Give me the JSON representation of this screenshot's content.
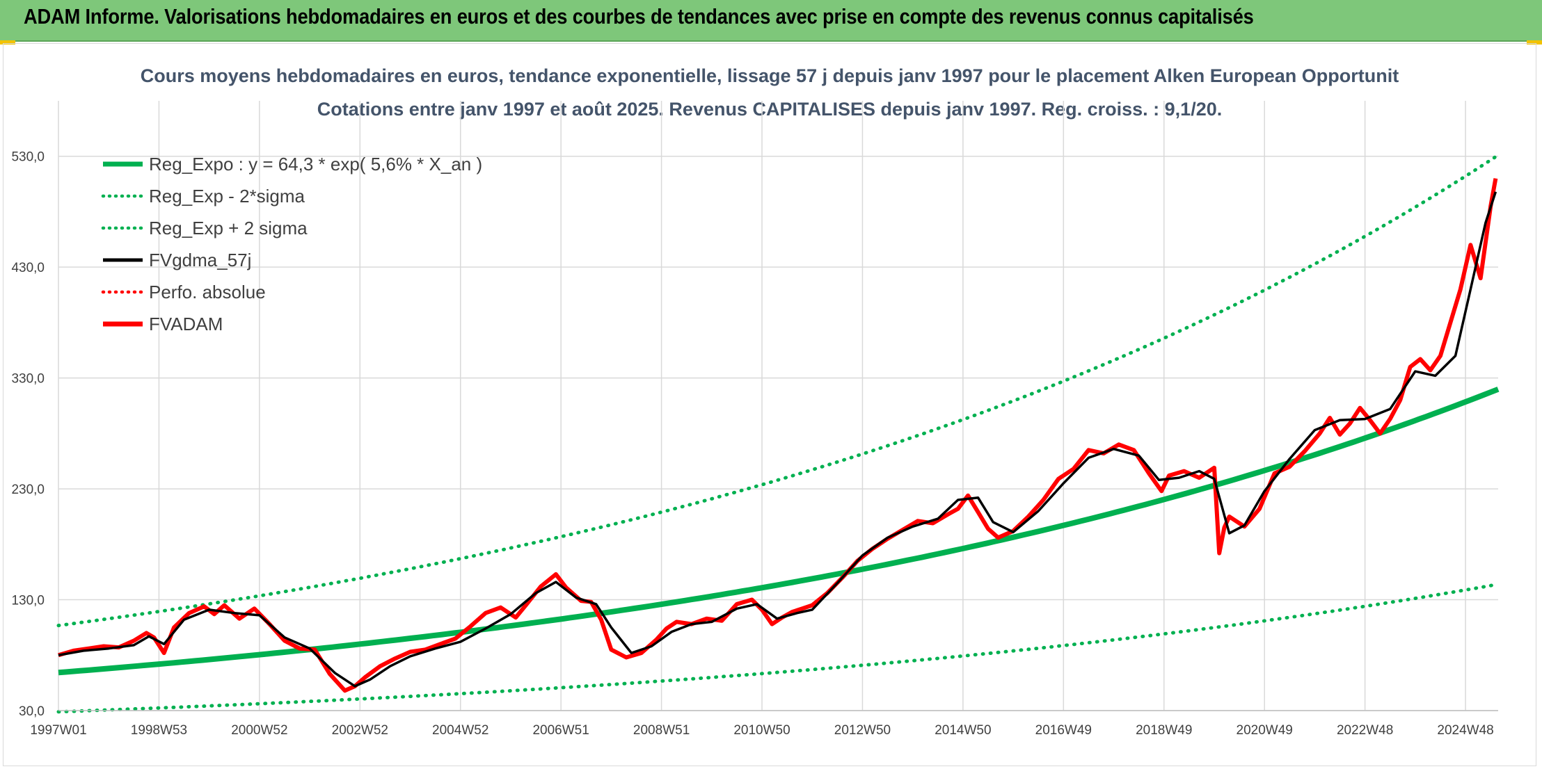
{
  "header": {
    "banner_title": "ADAM Informe. Valorisations hebdomadaires en euros et des courbes de tendances avec prise en compte des revenus connus capitalisés"
  },
  "colors": {
    "banner_bg": "#7ec77a",
    "reg_green": "#00b050",
    "smooth_black": "#000000",
    "price_red": "#ff0000",
    "grid": "#d9d9d9"
  },
  "chart_data": {
    "type": "line",
    "title_line1": "Cours moyens hebdomadaires en euros, tendance exponentielle, lissage 57 j depuis janv 1997 pour le placement Alken European Opportunit",
    "title_line2": "Cotations entre janv 1997 et août 2025. Revenus CAPITALISES depuis janv 1997. Reg. croiss. : 9,1/20.",
    "x_tick_labels": [
      "1997W01",
      "1998W53",
      "2000W52",
      "2002W52",
      "2004W52",
      "2006W51",
      "2008W51",
      "2010W50",
      "2012W50",
      "2014W50",
      "2016W49",
      "2018W49",
      "2020W49",
      "2022W48",
      "2024W48"
    ],
    "x_tick_years": [
      1997.0,
      1999.0,
      2001.0,
      2003.0,
      2005.0,
      2007.0,
      2009.0,
      2011.0,
      2013.0,
      2015.0,
      2017.0,
      2019.0,
      2021.0,
      2023.0,
      2025.0
    ],
    "x_range": [
      1997.0,
      2025.65
    ],
    "ylim": [
      30,
      580
    ],
    "y_ticks": [
      30,
      130,
      230,
      330,
      430,
      530
    ],
    "y_tick_labels": [
      "30,0",
      "130,0",
      "230,0",
      "330,0",
      "430,0",
      "530,0"
    ],
    "grid": true,
    "legend_position": "top-left",
    "legend": [
      {
        "label": "Reg_Expo : y = 64,3 * exp( 5,6% *  X_an )",
        "style": "solid-thick",
        "color": "#00b050"
      },
      {
        "label": "Reg_Exp - 2*sigma",
        "style": "dotted",
        "color": "#00b050"
      },
      {
        "label": "Reg_Exp + 2 sigma",
        "style": "dotted",
        "color": "#00b050"
      },
      {
        "label": "FVgdma_57j",
        "style": "solid",
        "color": "#000000"
      },
      {
        "label": "Perfo. absolue",
        "style": "dotted",
        "color": "#ff0000"
      },
      {
        "label": "FVADAM",
        "style": "solid-thick",
        "color": "#ff0000"
      }
    ],
    "regression": {
      "a": 64.3,
      "rate": 0.056,
      "lower_factor": 0.45,
      "upper_factor": 1.66
    },
    "series": [
      {
        "name": "FVADAM",
        "x": [
          1997.0,
          1997.3,
          1997.6,
          1997.9,
          1998.2,
          1998.5,
          1998.75,
          1998.9,
          1999.1,
          1999.3,
          1999.6,
          1999.9,
          2000.1,
          2000.3,
          2000.6,
          2000.9,
          2001.2,
          2001.5,
          2001.8,
          2002.1,
          2002.4,
          2002.7,
          2002.9,
          2003.1,
          2003.4,
          2003.7,
          2004.0,
          2004.3,
          2004.6,
          2004.9,
          2005.2,
          2005.5,
          2005.8,
          2006.1,
          2006.3,
          2006.6,
          2006.9,
          2007.1,
          2007.4,
          2007.6,
          2007.8,
          2008.0,
          2008.3,
          2008.6,
          2008.9,
          2009.1,
          2009.3,
          2009.6,
          2009.9,
          2010.2,
          2010.5,
          2010.8,
          2011.0,
          2011.2,
          2011.4,
          2011.6,
          2011.8,
          2012.0,
          2012.3,
          2012.6,
          2012.9,
          2013.2,
          2013.5,
          2013.8,
          2014.1,
          2014.4,
          2014.7,
          2014.9,
          2015.1,
          2015.3,
          2015.5,
          2015.7,
          2016.0,
          2016.3,
          2016.6,
          2016.9,
          2017.2,
          2017.5,
          2017.8,
          2018.1,
          2018.4,
          2018.7,
          2018.95,
          2019.1,
          2019.4,
          2019.7,
          2020.0,
          2020.1,
          2020.2,
          2020.3,
          2020.6,
          2020.9,
          2021.2,
          2021.5,
          2021.8,
          2022.1,
          2022.3,
          2022.5,
          2022.7,
          2022.9,
          2023.1,
          2023.3,
          2023.5,
          2023.7,
          2023.9,
          2024.1,
          2024.3,
          2024.5,
          2024.7,
          2024.9,
          2025.1,
          2025.3,
          2025.5,
          2025.6
        ],
        "y": [
          80,
          84,
          86,
          88,
          87,
          93,
          100,
          96,
          82,
          105,
          118,
          124,
          117,
          125,
          113,
          122,
          108,
          93,
          86,
          85,
          63,
          48,
          52,
          60,
          70,
          77,
          83,
          85,
          90,
          95,
          106,
          118,
          123,
          114,
          125,
          142,
          153,
          141,
          129,
          128,
          112,
          85,
          78,
          82,
          94,
          104,
          110,
          108,
          113,
          111,
          126,
          130,
          121,
          108,
          114,
          119,
          122,
          125,
          136,
          150,
          165,
          176,
          185,
          193,
          201,
          199,
          207,
          212,
          224,
          209,
          194,
          186,
          192,
          205,
          220,
          239,
          248,
          265,
          262,
          270,
          265,
          244,
          228,
          242,
          246,
          240,
          249,
          172,
          195,
          205,
          196,
          212,
          244,
          250,
          264,
          280,
          294,
          279,
          289,
          303,
          292,
          280,
          293,
          310,
          340,
          347,
          337,
          350,
          380,
          410,
          450,
          420,
          485,
          510
        ]
      },
      {
        "name": "FVgdma_57j",
        "x": [
          1997.0,
          1997.5,
          1998.0,
          1998.5,
          1998.8,
          1999.1,
          1999.5,
          2000.0,
          2000.5,
          2001.0,
          2001.5,
          2002.0,
          2002.5,
          2002.9,
          2003.2,
          2003.6,
          2004.0,
          2004.5,
          2005.0,
          2005.5,
          2006.0,
          2006.5,
          2006.9,
          2007.3,
          2007.7,
          2008.0,
          2008.4,
          2008.8,
          2009.2,
          2009.6,
          2010.0,
          2010.5,
          2010.9,
          2011.3,
          2011.7,
          2012.0,
          2012.5,
          2013.0,
          2013.5,
          2014.0,
          2014.5,
          2014.9,
          2015.3,
          2015.6,
          2016.0,
          2016.5,
          2017.0,
          2017.5,
          2018.0,
          2018.5,
          2018.9,
          2019.3,
          2019.7,
          2020.0,
          2020.3,
          2020.6,
          2021.0,
          2021.5,
          2022.0,
          2022.5,
          2023.0,
          2023.5,
          2024.0,
          2024.4,
          2024.8,
          2025.1,
          2025.4,
          2025.6
        ],
        "y": [
          80,
          84,
          86,
          89,
          97,
          90,
          112,
          121,
          118,
          116,
          96,
          86,
          64,
          52,
          58,
          70,
          79,
          86,
          92,
          104,
          117,
          136,
          146,
          132,
          126,
          105,
          82,
          88,
          101,
          108,
          110,
          122,
          126,
          113,
          118,
          121,
          145,
          170,
          186,
          196,
          203,
          220,
          222,
          200,
          191,
          210,
          235,
          258,
          266,
          260,
          238,
          240,
          246,
          239,
          190,
          197,
          228,
          257,
          283,
          292,
          293,
          302,
          336,
          332,
          350,
          410,
          470,
          498
        ]
      }
    ]
  }
}
